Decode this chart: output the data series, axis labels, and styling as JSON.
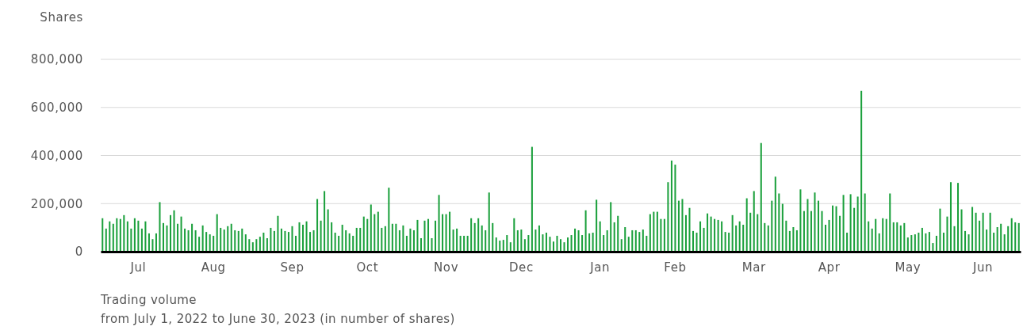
{
  "chart_data": {
    "type": "bar",
    "title": "Trading volume",
    "subtitle": "from July 1, 2022 to June 30, 2023 (in number of shares)",
    "ylabel": "Shares",
    "categories": [
      null,
      null,
      null,
      null,
      null,
      null,
      null,
      null,
      null,
      null,
      "Jul",
      null,
      null,
      null,
      null,
      null,
      null,
      null,
      null,
      null,
      null,
      null,
      null,
      null,
      null,
      null,
      null,
      null,
      null,
      null,
      null,
      "Aug",
      null,
      null,
      null,
      null,
      null,
      null,
      null,
      null,
      null,
      null,
      null,
      null,
      null,
      null,
      null,
      null,
      null,
      null,
      null,
      null,
      null,
      "Sep",
      null,
      null,
      null,
      null,
      null,
      null,
      null,
      null,
      null,
      null,
      null,
      null,
      null,
      null,
      null,
      null,
      null,
      null,
      null,
      null,
      "Oct",
      null,
      null,
      null,
      null,
      null,
      null,
      null,
      null,
      null,
      null,
      null,
      null,
      null,
      null,
      null,
      null,
      null,
      null,
      null,
      null,
      null,
      "Nov",
      null,
      null,
      null,
      null,
      null,
      null,
      null,
      null,
      null,
      null,
      null,
      null,
      null,
      null,
      null,
      null,
      null,
      null,
      null,
      null,
      "Dec",
      null,
      null,
      null,
      null,
      null,
      null,
      null,
      null,
      null,
      null,
      null,
      null,
      null,
      null,
      null,
      null,
      null,
      null,
      null,
      null,
      null,
      "Jan",
      null,
      null,
      null,
      null,
      null,
      null,
      null,
      null,
      null,
      null,
      null,
      null,
      null,
      null,
      null,
      null,
      null,
      null,
      null,
      null,
      "Feb",
      null,
      null,
      null,
      null,
      null,
      null,
      null,
      null,
      null,
      null,
      null,
      null,
      null,
      null,
      null,
      null,
      null,
      null,
      null,
      null,
      null,
      "Mar",
      null,
      null,
      null,
      null,
      null,
      null,
      null,
      null,
      null,
      null,
      null,
      null,
      null,
      null,
      null,
      null,
      null,
      null,
      null,
      null,
      "Apr",
      null,
      null,
      null,
      null,
      null,
      null,
      null,
      null,
      null,
      null,
      null,
      null,
      null,
      null,
      null,
      null,
      null,
      null,
      null,
      null,
      null,
      "May",
      null,
      null,
      null,
      null,
      null,
      null,
      null,
      null,
      null,
      null,
      null,
      null,
      null,
      null,
      null,
      null,
      null,
      null,
      null,
      null,
      "Jun",
      null,
      null,
      null,
      null,
      null,
      null,
      null,
      null,
      null,
      null
    ],
    "values": [
      139000,
      96000,
      126000,
      116000,
      139000,
      136000,
      152000,
      126000,
      96000,
      139000,
      129000,
      96000,
      126000,
      76000,
      52000,
      76000,
      206000,
      119000,
      109000,
      152000,
      172000,
      116000,
      146000,
      96000,
      89000,
      116000,
      89000,
      62000,
      109000,
      82000,
      72000,
      66000,
      156000,
      99000,
      92000,
      106000,
      116000,
      89000,
      86000,
      96000,
      72000,
      52000,
      39000,
      52000,
      62000,
      79000,
      56000,
      99000,
      86000,
      149000,
      96000,
      86000,
      82000,
      106000,
      66000,
      122000,
      112000,
      126000,
      82000,
      89000,
      219000,
      129000,
      252000,
      176000,
      122000,
      79000,
      66000,
      112000,
      89000,
      76000,
      66000,
      99000,
      99000,
      146000,
      136000,
      196000,
      156000,
      166000,
      99000,
      106000,
      266000,
      116000,
      116000,
      89000,
      109000,
      66000,
      96000,
      89000,
      132000,
      56000,
      129000,
      136000,
      56000,
      129000,
      236000,
      156000,
      156000,
      166000,
      92000,
      96000,
      66000,
      66000,
      66000,
      139000,
      119000,
      139000,
      109000,
      89000,
      246000,
      119000,
      59000,
      46000,
      49000,
      69000,
      39000,
      139000,
      89000,
      92000,
      52000,
      69000,
      436000,
      92000,
      109000,
      72000,
      79000,
      62000,
      42000,
      66000,
      52000,
      39000,
      59000,
      69000,
      96000,
      89000,
      69000,
      172000,
      76000,
      79000,
      216000,
      126000,
      69000,
      89000,
      206000,
      122000,
      149000,
      52000,
      102000,
      62000,
      89000,
      89000,
      82000,
      92000,
      66000,
      156000,
      166000,
      166000,
      136000,
      136000,
      289000,
      379000,
      362000,
      212000,
      219000,
      152000,
      182000,
      86000,
      79000,
      126000,
      99000,
      159000,
      146000,
      136000,
      132000,
      126000,
      82000,
      79000,
      152000,
      109000,
      126000,
      112000,
      222000,
      162000,
      252000,
      156000,
      452000,
      119000,
      109000,
      212000,
      312000,
      242000,
      199000,
      129000,
      86000,
      102000,
      89000,
      259000,
      169000,
      219000,
      169000,
      246000,
      212000,
      169000,
      112000,
      132000,
      192000,
      189000,
      149000,
      236000,
      79000,
      239000,
      182000,
      229000,
      669000,
      242000,
      126000,
      96000,
      136000,
      76000,
      139000,
      136000,
      242000,
      122000,
      122000,
      109000,
      119000,
      59000,
      69000,
      72000,
      79000,
      99000,
      76000,
      82000,
      36000,
      66000,
      179000,
      79000,
      146000,
      289000,
      106000,
      286000,
      176000,
      86000,
      72000,
      186000,
      162000,
      129000,
      162000,
      92000,
      162000,
      79000,
      102000,
      116000,
      72000,
      106000,
      139000,
      122000,
      119000
    ],
    "color": "#1ba03c",
    "ylim": [
      0,
      800000
    ],
    "yticks": [
      {
        "value": 0,
        "label": "0"
      },
      {
        "value": 200000,
        "label": "200,000"
      },
      {
        "value": 400000,
        "label": "400,000"
      },
      {
        "value": 600000,
        "label": "600,000"
      },
      {
        "value": 800000,
        "label": "800,000"
      }
    ],
    "grid": "y"
  }
}
